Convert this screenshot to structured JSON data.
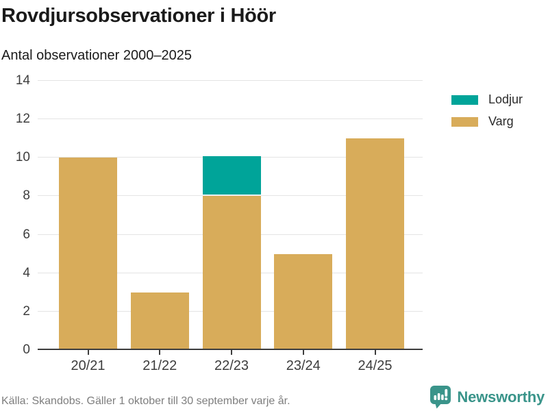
{
  "title": "Rovdjursobservationer i Höör",
  "subtitle": "Antal observationer 2000–2025",
  "source": "Källa: Skandobs. Gäller 1 oktober till 30 september varje år.",
  "brand": {
    "name": "Newsworthy",
    "color": "#3a948a",
    "icon": "bar-chart-speech-bubble-icon"
  },
  "colors": {
    "lodjur": "#00a499",
    "varg": "#d8ac5a",
    "grid": "#e4e4e4",
    "axis": "#3c3c3c"
  },
  "legend": [
    {
      "label": "Lodjur",
      "color": "#00a499"
    },
    {
      "label": "Varg",
      "color": "#d8ac5a"
    }
  ],
  "chart_data": {
    "type": "bar",
    "stacked": true,
    "title": "Rovdjursobservationer i Höör",
    "subtitle": "Antal observationer 2000–2025",
    "categories": [
      "20/21",
      "21/22",
      "22/23",
      "23/24",
      "24/25"
    ],
    "series": [
      {
        "name": "Lodjur",
        "color": "#00a499",
        "values": [
          0,
          0,
          2,
          0,
          0
        ]
      },
      {
        "name": "Varg",
        "color": "#d8ac5a",
        "values": [
          10,
          3,
          8,
          5,
          11
        ]
      }
    ],
    "totals": [
      10,
      3,
      10,
      5,
      11
    ],
    "xlabel": "",
    "ylabel": "",
    "ylim": [
      0,
      14
    ],
    "yticks": [
      0,
      2,
      4,
      6,
      8,
      10,
      12,
      14
    ],
    "grid": true,
    "legend_position": "top-right"
  }
}
